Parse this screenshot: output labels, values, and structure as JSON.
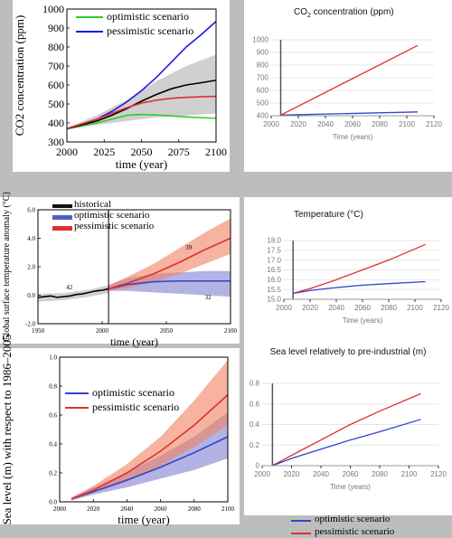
{
  "colors": {
    "optimistic": "#2ecc2e",
    "pessimistic": "#1a1ae6",
    "median": "#000000",
    "red_line": "#e03030",
    "blue_line": "#3344cc",
    "red_band": "#f08060",
    "blue_band": "#8080d0",
    "gray_band": "#b0b0b0"
  },
  "legends": {
    "optimistic": "optimistic scenario",
    "pessimistic": "pessimistic scenario",
    "historical": "historical"
  },
  "chart_data": [
    {
      "id": "co2_ensemble",
      "type": "line",
      "title": "",
      "xlabel": "time (year)",
      "ylabel": "CO2 concentration (ppm)",
      "xlim": [
        2000,
        2100
      ],
      "ylim": [
        300,
        1000
      ],
      "x_ticks": [
        2000,
        2025,
        2050,
        2075,
        2100
      ],
      "y_ticks": [
        300,
        400,
        500,
        600,
        700,
        800,
        900,
        1000
      ],
      "legend": "top-left",
      "series": [
        {
          "name": "optimistic scenario",
          "color_key": "optimistic",
          "x": [
            2000,
            2010,
            2020,
            2030,
            2040,
            2050,
            2060,
            2070,
            2080,
            2090,
            2100
          ],
          "y": [
            370,
            385,
            400,
            420,
            440,
            445,
            442,
            437,
            432,
            428,
            425
          ]
        },
        {
          "name": "pessimistic scenario",
          "color_key": "pessimistic",
          "x": [
            2000,
            2010,
            2020,
            2030,
            2040,
            2050,
            2060,
            2070,
            2080,
            2090,
            2100
          ],
          "y": [
            370,
            390,
            420,
            460,
            510,
            570,
            640,
            720,
            800,
            865,
            935
          ]
        },
        {
          "name": "",
          "color_key": "median",
          "x": [
            2000,
            2010,
            2020,
            2030,
            2040,
            2050,
            2060,
            2070,
            2080,
            2090,
            2100
          ],
          "y": [
            370,
            390,
            410,
            440,
            475,
            515,
            550,
            580,
            600,
            612,
            625
          ]
        },
        {
          "name": "",
          "color_key": "red_line",
          "x": [
            2000,
            2010,
            2020,
            2030,
            2040,
            2050,
            2060,
            2070,
            2080,
            2090,
            2100
          ],
          "y": [
            370,
            395,
            420,
            450,
            480,
            505,
            520,
            530,
            535,
            538,
            540
          ]
        }
      ],
      "band": {
        "color_key": "gray_band",
        "x": [
          2000,
          2020,
          2040,
          2060,
          2080,
          2100
        ],
        "lower": [
          365,
          390,
          410,
          430,
          440,
          450
        ],
        "upper": [
          375,
          440,
          520,
          620,
          700,
          760
        ]
      }
    },
    {
      "id": "co2_small",
      "type": "line",
      "title": "CO2 concentration (ppm)",
      "xlabel": "Time (years)",
      "ylabel": "",
      "xlim": [
        2000,
        2120
      ],
      "ylim": [
        400,
        1000
      ],
      "x_ticks": [
        2000,
        2020,
        2040,
        2060,
        2080,
        2100,
        2120
      ],
      "y_ticks": [
        400,
        500,
        600,
        700,
        800,
        900,
        1000
      ],
      "marker_x": 2007,
      "series": [
        {
          "name": "",
          "color_key": "red_line",
          "x": [
            2007,
            2108
          ],
          "y": [
            405,
            955
          ]
        },
        {
          "name": "",
          "color_key": "blue_line",
          "x": [
            2007,
            2108
          ],
          "y": [
            405,
            430
          ]
        }
      ]
    },
    {
      "id": "temperature_ensemble",
      "type": "line",
      "title": "",
      "xlabel": "time (year)",
      "ylabel": "Global surface temperature anomaly (°C)",
      "xlim": [
        1950,
        2100
      ],
      "ylim": [
        -2.0,
        6.0
      ],
      "x_ticks": [
        1950,
        2000,
        2050,
        2100
      ],
      "y_ticks": [
        -2.0,
        0.0,
        2.0,
        4.0,
        6.0
      ],
      "marker_x": 2005,
      "legend": "top-left",
      "annotations": [
        {
          "text": "42",
          "x": 1972,
          "y": 0.4
        },
        {
          "text": "39",
          "x": 2065,
          "y": 3.2
        },
        {
          "text": "32",
          "x": 2080,
          "y": -0.3
        }
      ],
      "series": [
        {
          "name": "historical",
          "color_key": "median",
          "x": [
            1950,
            1955,
            1960,
            1965,
            1970,
            1975,
            1980,
            1985,
            1990,
            1995,
            2000,
            2005
          ],
          "y": [
            -0.15,
            -0.1,
            -0.05,
            -0.15,
            -0.1,
            -0.05,
            0.05,
            0.1,
            0.2,
            0.3,
            0.35,
            0.45
          ]
        },
        {
          "name": "optimistic scenario",
          "color_key": "blue_line",
          "x": [
            2005,
            2020,
            2040,
            2060,
            2080,
            2100
          ],
          "y": [
            0.45,
            0.75,
            0.95,
            1.0,
            1.0,
            1.0
          ]
        },
        {
          "name": "pessimistic scenario",
          "color_key": "red_line",
          "x": [
            2005,
            2020,
            2040,
            2060,
            2080,
            2100
          ],
          "y": [
            0.45,
            0.85,
            1.5,
            2.3,
            3.2,
            4.0
          ]
        }
      ],
      "bands": [
        {
          "color_key": "gray_band",
          "x": [
            1950,
            1970,
            1990,
            2005
          ],
          "lower": [
            -0.45,
            -0.35,
            -0.1,
            0.15
          ],
          "upper": [
            0.1,
            0.15,
            0.4,
            0.7
          ]
        },
        {
          "color_key": "blue_band",
          "x": [
            2005,
            2020,
            2040,
            2060,
            2080,
            2100
          ],
          "lower": [
            0.3,
            0.3,
            0.2,
            0.1,
            0.0,
            -0.1
          ],
          "upper": [
            0.7,
            1.2,
            1.5,
            1.6,
            1.7,
            1.7
          ]
        },
        {
          "color_key": "red_band",
          "x": [
            2005,
            2020,
            2040,
            2060,
            2080,
            2100
          ],
          "lower": [
            0.3,
            0.5,
            0.9,
            1.5,
            2.2,
            2.9
          ],
          "upper": [
            0.7,
            1.3,
            2.2,
            3.3,
            4.4,
            5.4
          ]
        }
      ]
    },
    {
      "id": "temperature_small",
      "type": "line",
      "title": "Temperature (°C)",
      "xlabel": "Time (years)",
      "ylabel": "",
      "xlim": [
        2000,
        2120
      ],
      "ylim": [
        15.0,
        18.0
      ],
      "x_ticks": [
        2000,
        2020,
        2040,
        2060,
        2080,
        2100,
        2120
      ],
      "y_ticks": [
        15.0,
        15.5,
        16.0,
        16.5,
        17.0,
        17.5,
        18.0
      ],
      "marker_x": 2007,
      "series": [
        {
          "name": "",
          "color_key": "red_line",
          "x": [
            2007,
            2020,
            2040,
            2060,
            2080,
            2108
          ],
          "y": [
            15.3,
            15.55,
            16.0,
            16.5,
            17.0,
            17.8
          ]
        },
        {
          "name": "",
          "color_key": "blue_line",
          "x": [
            2007,
            2020,
            2040,
            2060,
            2080,
            2108
          ],
          "y": [
            15.3,
            15.45,
            15.6,
            15.72,
            15.8,
            15.9
          ]
        }
      ]
    },
    {
      "id": "sea_level_ensemble",
      "type": "line",
      "title": "",
      "xlabel": "time (year)",
      "ylabel": "Sea level (m) with respect to 1986–2005",
      "xlim": [
        2000,
        2100
      ],
      "ylim": [
        0.0,
        1.0
      ],
      "x_ticks": [
        2000,
        2020,
        2040,
        2060,
        2080,
        2100
      ],
      "y_ticks": [
        0.0,
        0.2,
        0.4,
        0.6,
        0.8,
        1.0
      ],
      "legend": "top-left",
      "series": [
        {
          "name": "optimistic scenario",
          "color_key": "blue_line",
          "x": [
            2007,
            2020,
            2040,
            2060,
            2080,
            2100
          ],
          "y": [
            0.02,
            0.07,
            0.15,
            0.24,
            0.34,
            0.45
          ]
        },
        {
          "name": "pessimistic scenario",
          "color_key": "red_line",
          "x": [
            2007,
            2020,
            2040,
            2060,
            2080,
            2100
          ],
          "y": [
            0.02,
            0.08,
            0.2,
            0.35,
            0.53,
            0.74
          ]
        }
      ],
      "bands": [
        {
          "color_key": "blue_band",
          "x": [
            2007,
            2020,
            2040,
            2060,
            2080,
            2100
          ],
          "lower": [
            0.01,
            0.05,
            0.1,
            0.16,
            0.22,
            0.3
          ],
          "upper": [
            0.03,
            0.1,
            0.2,
            0.32,
            0.45,
            0.62
          ]
        },
        {
          "color_key": "red_band",
          "x": [
            2007,
            2020,
            2040,
            2060,
            2080,
            2100
          ],
          "lower": [
            0.01,
            0.06,
            0.14,
            0.25,
            0.38,
            0.53
          ],
          "upper": [
            0.03,
            0.11,
            0.26,
            0.45,
            0.7,
            0.98
          ]
        }
      ]
    },
    {
      "id": "sea_level_small",
      "type": "line",
      "title": "Sea level relatively to pre-industrial (m)",
      "xlabel": "Time (years)",
      "ylabel": "",
      "xlim": [
        2000,
        2120
      ],
      "ylim": [
        0,
        0.8
      ],
      "x_ticks": [
        2000,
        2020,
        2040,
        2060,
        2080,
        2100,
        2120
      ],
      "y_ticks": [
        0,
        0.2,
        0.4,
        0.6,
        0.8
      ],
      "marker_x": 2007,
      "series": [
        {
          "name": "",
          "color_key": "red_line",
          "x": [
            2007,
            2020,
            2040,
            2060,
            2080,
            2108
          ],
          "y": [
            0.0,
            0.1,
            0.25,
            0.4,
            0.53,
            0.7
          ]
        },
        {
          "name": "",
          "color_key": "blue_line",
          "x": [
            2007,
            2020,
            2040,
            2060,
            2080,
            2108
          ],
          "y": [
            0.0,
            0.07,
            0.16,
            0.25,
            0.33,
            0.45
          ]
        }
      ]
    }
  ]
}
